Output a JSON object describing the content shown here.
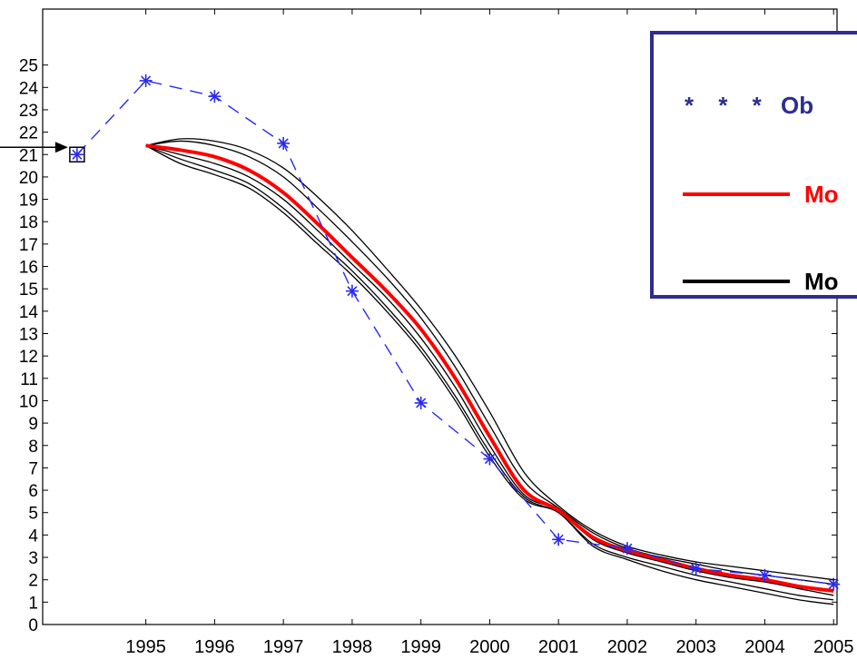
{
  "chart_data": {
    "type": "line",
    "x": [
      1994,
      1995,
      1996,
      1997,
      1998,
      1999,
      2000,
      2001,
      2002,
      2003,
      2004,
      2005
    ],
    "xticks": [
      "1995",
      "1996",
      "1997",
      "1998",
      "1999",
      "2000",
      "2001",
      "2002",
      "2003",
      "2004",
      "2005"
    ],
    "yticks": [
      "0",
      "1",
      "2",
      "3",
      "4",
      "5",
      "6",
      "7",
      "8",
      "9",
      "10",
      "11",
      "12",
      "13",
      "14",
      "15",
      "16",
      "17",
      "18",
      "19",
      "20",
      "21",
      "22",
      "23",
      "24",
      "25"
    ],
    "xlim": [
      1993.5,
      2005.05
    ],
    "ylim": [
      0,
      27.5
    ],
    "grid": false,
    "series": [
      {
        "name": "Ob",
        "style": "dashed-star",
        "color": "#2a2af0",
        "x": [
          1994,
          1995,
          1996,
          1997,
          1998,
          1999,
          2000,
          2001,
          2002,
          2003,
          2004,
          2005
        ],
        "values": [
          21.0,
          24.3,
          23.6,
          21.5,
          14.9,
          9.9,
          7.4,
          3.8,
          3.4,
          2.5,
          2.2,
          1.8
        ]
      },
      {
        "name": "Mo",
        "style": "solid-thick",
        "color": "#ff0000",
        "x": [
          1995,
          1995.5,
          1996,
          1996.5,
          1997,
          1997.5,
          1998,
          1998.5,
          1999,
          1999.5,
          2000,
          2000.5,
          2001,
          2001.5,
          2002,
          2002.5,
          2003,
          2003.5,
          2004,
          2004.5,
          2005
        ],
        "values": [
          21.4,
          21.2,
          20.9,
          20.3,
          19.3,
          17.9,
          16.4,
          14.9,
          13.2,
          11.0,
          8.4,
          6.0,
          5.1,
          3.9,
          3.3,
          2.9,
          2.5,
          2.2,
          2.0,
          1.7,
          1.5
        ]
      },
      {
        "name": "Mo",
        "style": "solid",
        "color": "#000000",
        "bands": [
          [
            21.4,
            21.7,
            21.6,
            21.2,
            20.4,
            19.1,
            17.6,
            15.9,
            14.1,
            12.0,
            9.5,
            6.8,
            5.3,
            4.2,
            3.5,
            3.1,
            2.8,
            2.6,
            2.4,
            2.2,
            2.0
          ],
          [
            21.4,
            21.6,
            21.4,
            20.9,
            20.0,
            18.6,
            17.1,
            15.5,
            13.7,
            11.5,
            8.9,
            6.4,
            5.2,
            4.1,
            3.4,
            3.0,
            2.7,
            2.4,
            2.2,
            2.0,
            1.8
          ],
          [
            21.4,
            21.0,
            20.6,
            20.0,
            19.0,
            17.6,
            16.1,
            14.6,
            12.8,
            10.6,
            8.0,
            5.8,
            5.1,
            3.8,
            3.2,
            2.8,
            2.4,
            2.1,
            1.9,
            1.6,
            1.3
          ],
          [
            21.4,
            20.8,
            20.3,
            19.7,
            18.6,
            17.2,
            15.8,
            14.2,
            12.4,
            10.2,
            7.7,
            5.7,
            5.0,
            3.6,
            3.0,
            2.6,
            2.2,
            1.9,
            1.6,
            1.3,
            1.1
          ],
          [
            21.4,
            20.6,
            20.1,
            19.5,
            18.4,
            17.0,
            15.6,
            14.0,
            12.2,
            10.0,
            7.5,
            5.6,
            5.0,
            3.5,
            2.9,
            2.4,
            2.0,
            1.7,
            1.4,
            1.1,
            0.9
          ]
        ]
      }
    ],
    "annotation": {
      "type": "arrow-to-first-point",
      "marker": "square"
    }
  },
  "legend": {
    "items": [
      {
        "symbol": "* * *",
        "label": "Ob",
        "color": "#2d2d8f"
      },
      {
        "symbol": "line",
        "label": "Mo",
        "color": "#ff0000"
      },
      {
        "symbol": "line",
        "label": "Mo",
        "color": "#000000"
      }
    ]
  }
}
